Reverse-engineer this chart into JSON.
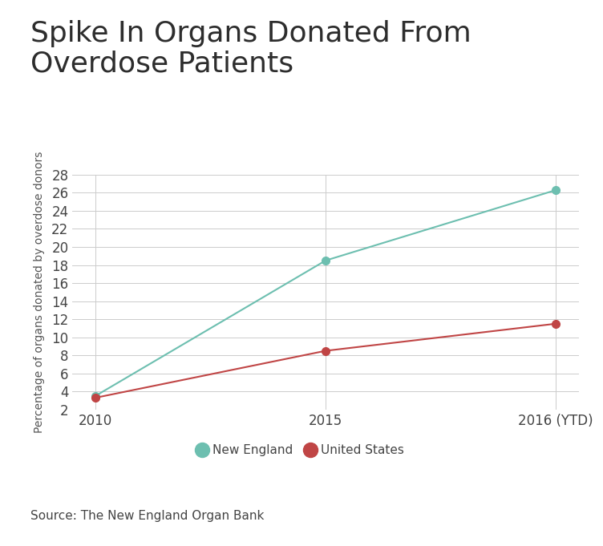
{
  "title": "Spike In Organs Donated From\nOverdose Patients",
  "title_fontsize": 26,
  "title_color": "#2d2d2d",
  "source_text": "Source: The New England Organ Bank",
  "source_fontsize": 11,
  "ylabel": "Percentage of organs donated by overdose donors",
  "ylabel_fontsize": 10,
  "ylabel_color": "#555555",
  "x_labels": [
    "2010",
    "2015",
    "2016 (YTD)"
  ],
  "x_positions": [
    0,
    1,
    2
  ],
  "ylim": [
    2,
    28
  ],
  "yticks": [
    2,
    4,
    6,
    8,
    10,
    12,
    14,
    16,
    18,
    20,
    22,
    24,
    26,
    28
  ],
  "new_england": {
    "values": [
      3.5,
      18.5,
      26.3
    ],
    "color": "#6dbfb0",
    "label": "New England",
    "marker_size": 7
  },
  "united_states": {
    "values": [
      3.3,
      8.5,
      11.5
    ],
    "color": "#c04545",
    "label": "United States",
    "marker_size": 7
  },
  "grid_color": "#cccccc",
  "bg_color": "#ffffff",
  "plot_bg_color": "#ffffff",
  "separator_color": "#d0d0d0",
  "legend_fontsize": 11,
  "tick_fontsize": 12,
  "tick_color": "#444444"
}
